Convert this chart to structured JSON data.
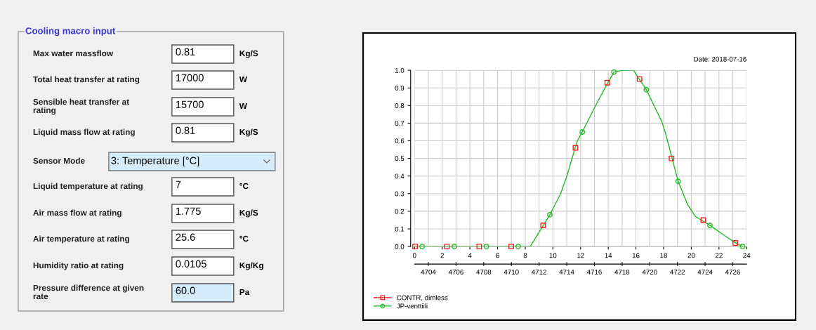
{
  "chart_data": [
    {
      "type": "other",
      "title": "Cooling macro input",
      "annotations": [
        "Max water massflow",
        "0.81",
        "Kg/S",
        "Total heat transfer at rating",
        "17000",
        "W",
        "Sensible heat transfer at\nrating",
        "15700",
        "W",
        "Liquid mass flow at rating",
        "0.81",
        "Kg/S",
        "Sensor Mode",
        "3: Temperature [°C]",
        "Liquid temperature at rating",
        "7",
        "°C",
        "Air mass flow at rating",
        "1.775",
        "Kg/S",
        "Air temperature at rating",
        "25.6",
        "°C",
        "Humidity ratio at rating",
        "0.0105",
        "Kg/Kg",
        "Pressure difference at given\nrate",
        "60.0",
        "Pa"
      ]
    },
    {
      "type": "line",
      "annotations": [
        "Date: 2018-07-16"
      ],
      "xlim": [
        0,
        24
      ],
      "xticks": [
        0,
        2,
        4,
        6,
        8,
        10,
        12,
        14,
        16,
        18,
        20,
        22,
        24
      ],
      "x2lim": [
        4703,
        4727
      ],
      "x2ticks": [
        4704,
        4706,
        4708,
        4710,
        4712,
        4714,
        4716,
        4718,
        4720,
        4722,
        4724,
        4726
      ],
      "ylim": [
        0,
        1.0
      ],
      "yticks": [
        {
          "value": 0,
          "label": "0.0"
        },
        {
          "value": 0.1,
          "label": "0.1"
        },
        {
          "value": 0.2,
          "label": "0.2"
        },
        {
          "value": 0.3,
          "label": "0.3"
        },
        {
          "value": 0.4,
          "label": "0.4"
        },
        {
          "value": 0.5,
          "label": "0.5"
        },
        {
          "value": 0.6,
          "label": "0.6"
        },
        {
          "value": 0.7,
          "label": "0.7"
        },
        {
          "value": 0.8,
          "label": "0.8"
        },
        {
          "value": 0.9,
          "label": "0.9"
        },
        {
          "value": 1.0,
          "label": "1.0"
        }
      ],
      "grid": true,
      "legend": "bottom left",
      "series": [
        {
          "type": "scatter",
          "name": "CONTR, dimless",
          "color": "#ee2222",
          "marker": "square",
          "x": [
            0.04,
            2.34,
            4.67,
            6.99,
            9.29,
            11.63,
            13.93,
            16.26,
            18.57,
            20.87,
            23.18
          ],
          "values": [
            0,
            0,
            0,
            0,
            0.12,
            0.56,
            0.93,
            0.95,
            0.5,
            0.15,
            0.02
          ]
        },
        {
          "name": "JP-venttiili",
          "color": "#22bb22",
          "marker": "none",
          "x": [
            0,
            8.36,
            9.78,
            10.56,
            11.05,
            11.53,
            11.77,
            12.12,
            13.09,
            13.97,
            14.41,
            15.04,
            15.82,
            16.75,
            17.86,
            18.15,
            18.55,
            19.05,
            19.72,
            20.3,
            21.35,
            22.44,
            23.22,
            23.71
          ],
          "values": [
            0,
            0,
            0.18,
            0.3,
            0.41,
            0.54,
            0.6,
            0.65,
            0.8,
            0.93,
            0.99,
            1.0,
            1.0,
            0.89,
            0.71,
            0.64,
            0.52,
            0.37,
            0.24,
            0.17,
            0.12,
            0.06,
            0.02,
            0
          ]
        },
        {
          "type": "scatter",
          "color": "#22bb22",
          "marker": "circle",
          "x": [
            0.55,
            2.87,
            5.19,
            7.49,
            9.78,
            12.12,
            14.41,
            16.75,
            19.05,
            21.35,
            23.71
          ],
          "values": [
            0,
            0,
            0,
            0,
            0.18,
            0.65,
            0.99,
            0.89,
            0.37,
            0.12,
            0
          ]
        }
      ]
    }
  ]
}
